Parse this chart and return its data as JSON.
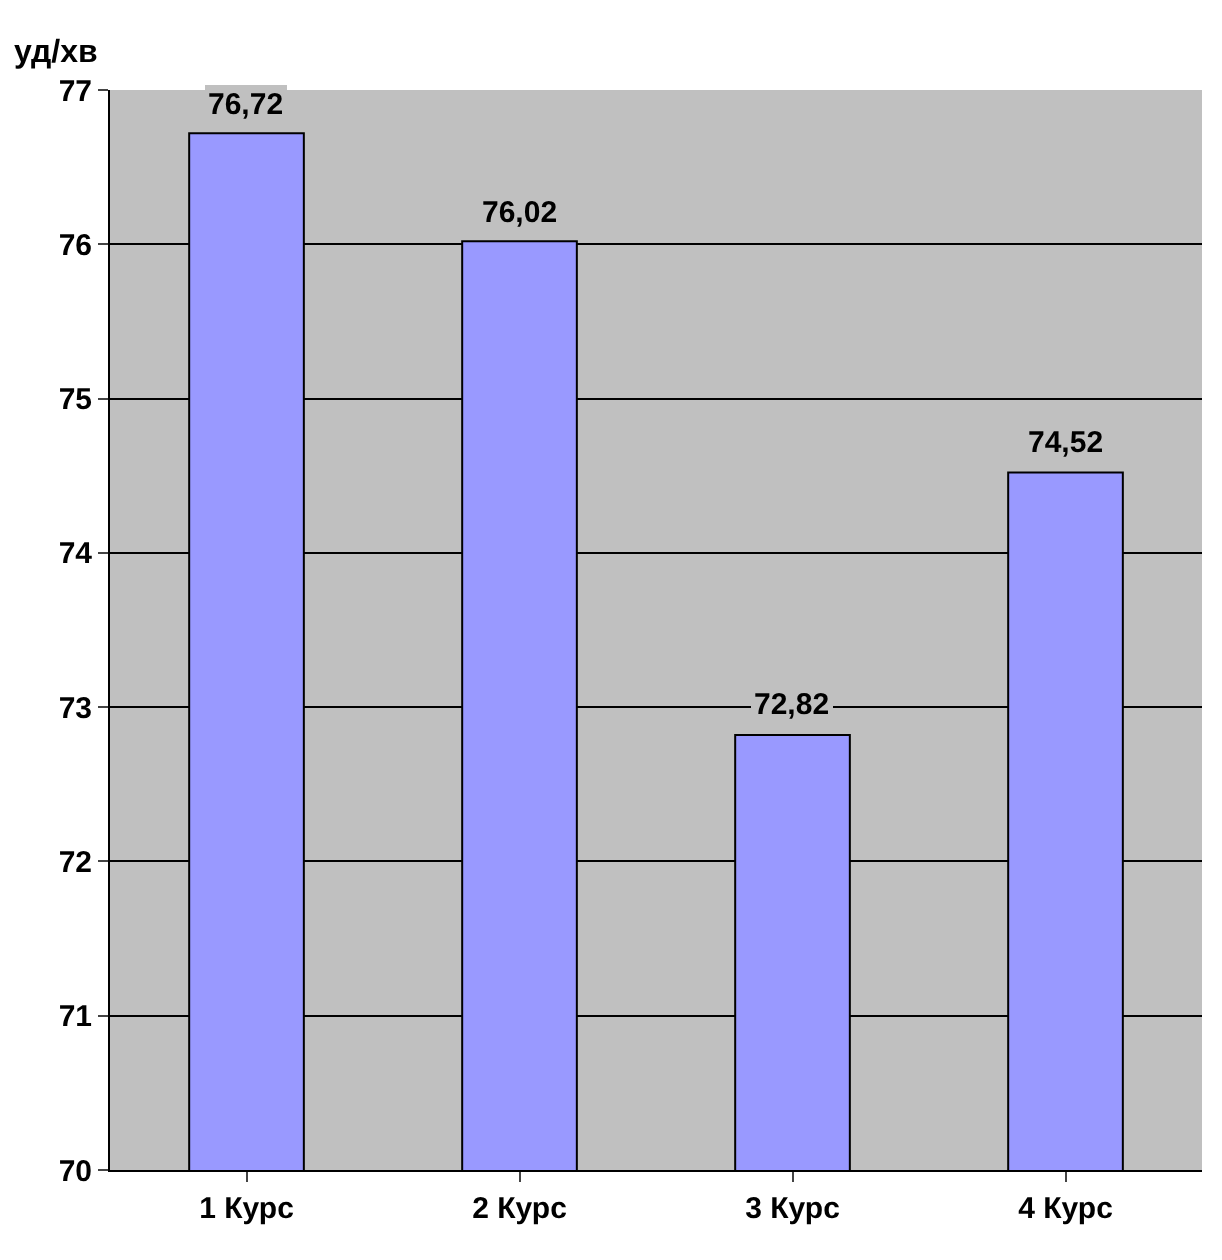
{
  "chart_data": {
    "type": "bar",
    "ylabel": "уд/хв",
    "categories": [
      "1 Курс",
      "2 Курс",
      "3 Курс",
      "4 Курс"
    ],
    "values": [
      76.72,
      76.02,
      72.82,
      74.52
    ],
    "value_labels": [
      "76,72",
      "76,02",
      "72,82",
      "74,52"
    ],
    "color": "#9999ff",
    "ylim": [
      70,
      77
    ],
    "yticks": [
      70,
      71,
      72,
      73,
      74,
      75,
      76,
      77
    ],
    "grid": "y"
  }
}
